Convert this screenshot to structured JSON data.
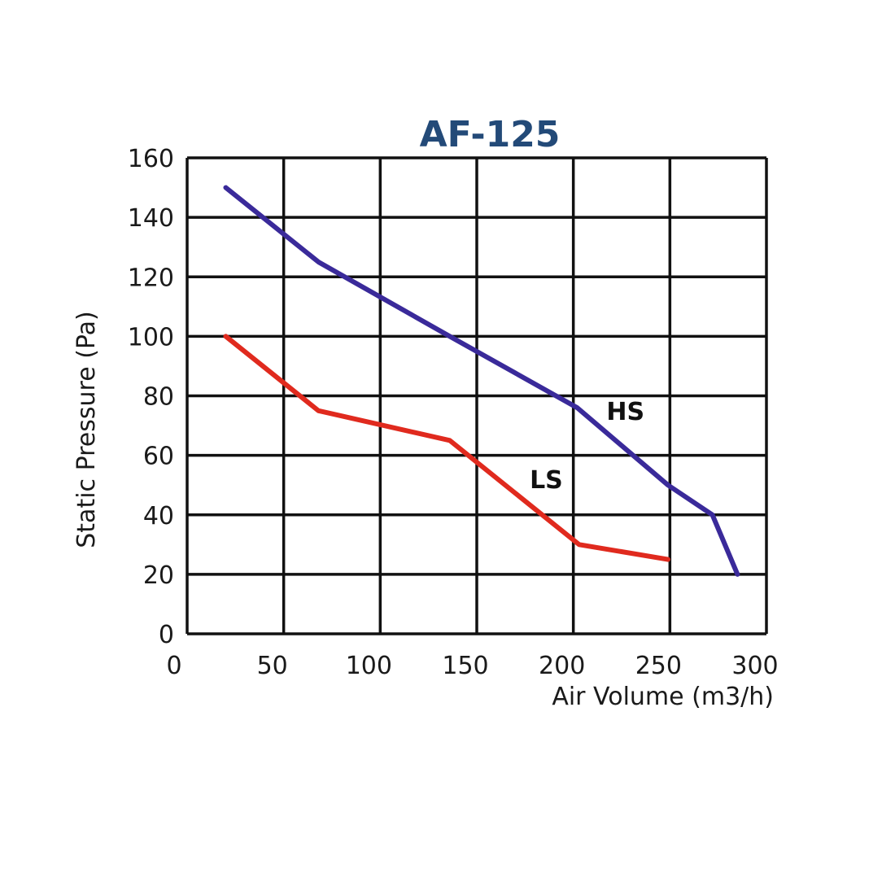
{
  "chart_data": {
    "type": "line",
    "title": "AF-125",
    "xlabel": "Air Volume (m3/h)",
    "ylabel": "Static Pressure (Pa)",
    "xlim": [
      0,
      300
    ],
    "ylim": [
      0,
      160
    ],
    "x_ticks": [
      0,
      50,
      100,
      150,
      200,
      250,
      300
    ],
    "y_ticks": [
      0,
      20,
      40,
      60,
      80,
      100,
      120,
      140,
      160
    ],
    "grid": true,
    "legend": "inline labels",
    "series": [
      {
        "name": "HS",
        "color": "#3a2a9a",
        "x": [
          20,
          68,
          136,
          202,
          249,
          272,
          285
        ],
        "y": [
          150,
          125,
          100,
          76,
          50,
          40,
          20
        ],
        "label_pos": [
          227,
          72
        ]
      },
      {
        "name": "LS",
        "color": "#e02a1e",
        "x": [
          20,
          68,
          136,
          203,
          249
        ],
        "y": [
          100,
          75,
          65,
          30,
          25
        ],
        "label_pos": [
          186,
          49
        ]
      }
    ]
  },
  "colors": {
    "title": "#234a78",
    "grid": "#111111",
    "hs": "#3a2a9a",
    "ls": "#e02a1e"
  }
}
